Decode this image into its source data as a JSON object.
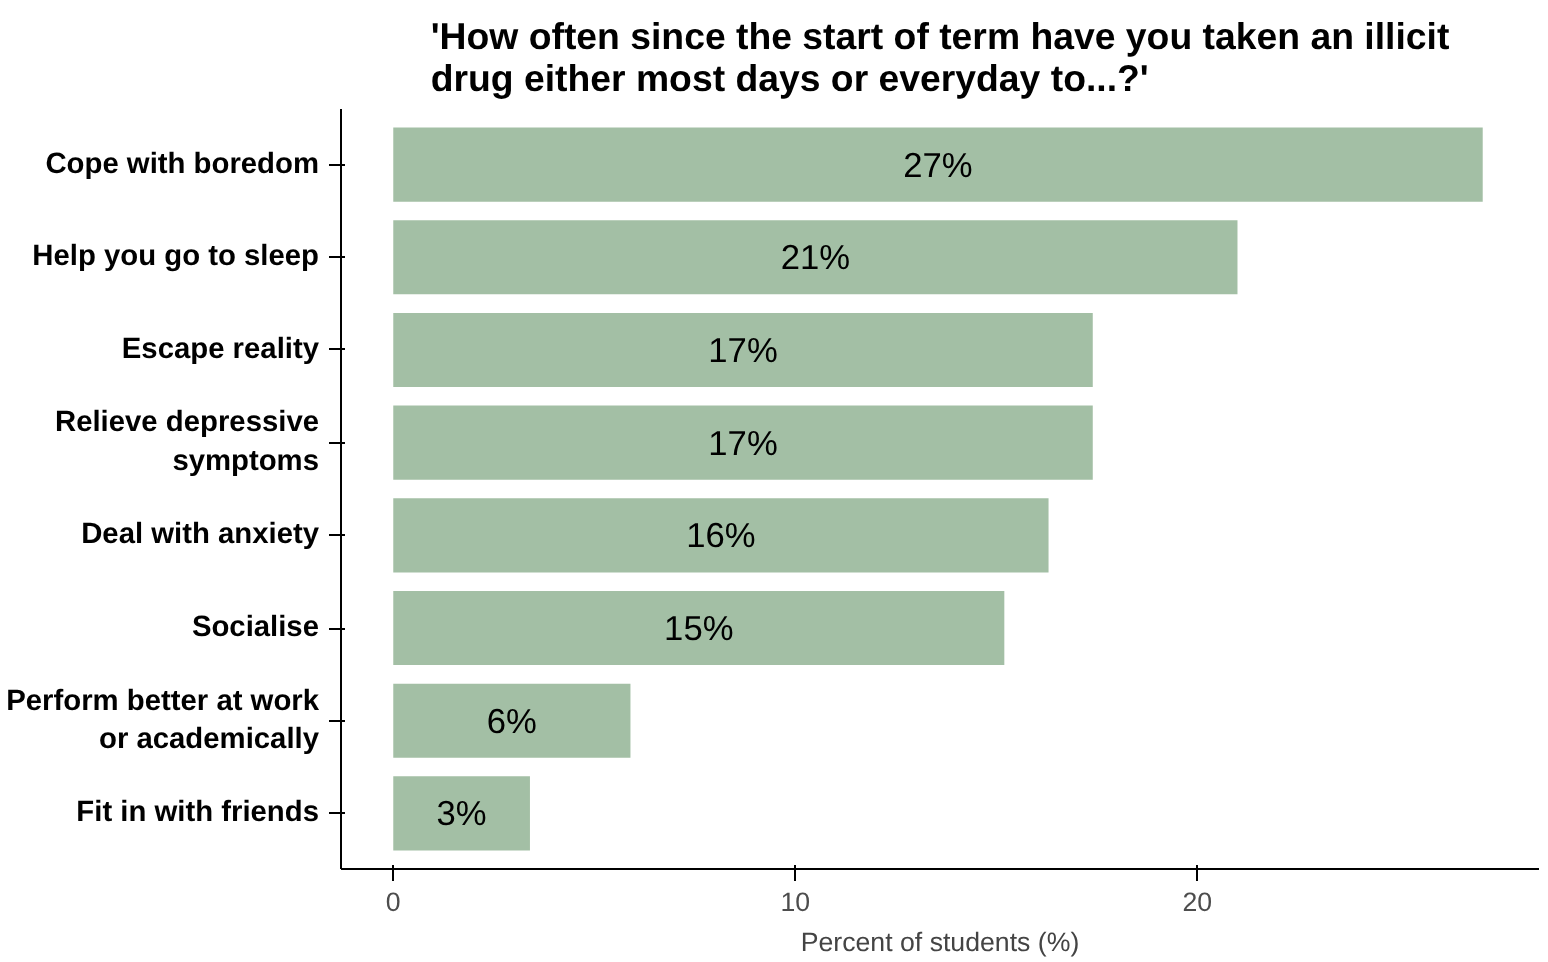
{
  "chart_data": {
    "type": "bar",
    "orientation": "horizontal",
    "title": "'How often since the start of term have you taken an illicit\ndrug either most days or everyday to...?'",
    "xlabel": "Percent of students (%)",
    "categories": [
      "Cope with boredom",
      "Help you go to sleep",
      "Escape reality",
      "Relieve depressive\nsymptoms",
      "Deal with anxiety",
      "Socialise",
      "Perform better at work\nor academically",
      "Fit in with friends"
    ],
    "values": [
      27.1,
      21.0,
      17.4,
      17.4,
      16.3,
      15.2,
      5.9,
      3.4
    ],
    "value_labels": [
      "27%",
      "21%",
      "17%",
      "17%",
      "16%",
      "15%",
      "6%",
      "3%"
    ],
    "color": "#a3bfa5",
    "xlim": [
      -1.3,
      28.5
    ],
    "xticks": [
      0,
      10,
      20
    ],
    "grid": false
  }
}
